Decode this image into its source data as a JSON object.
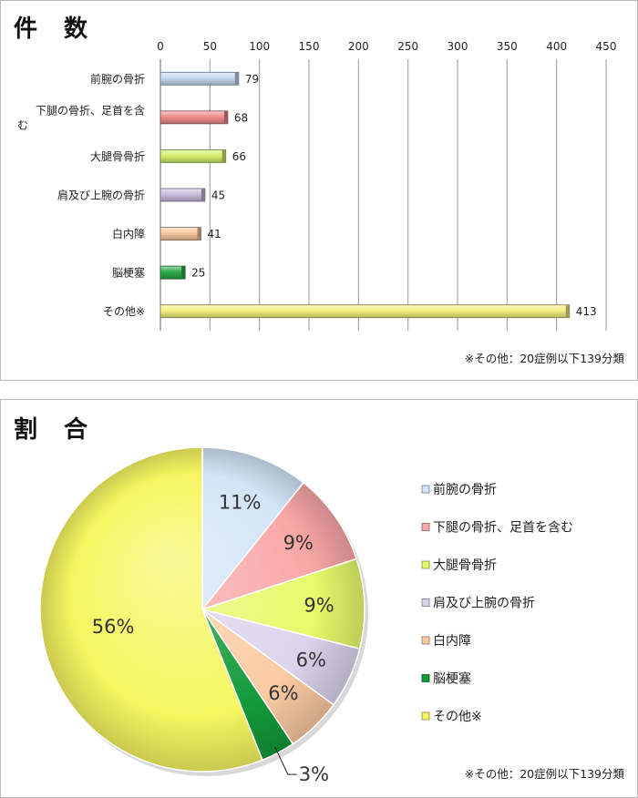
{
  "bar_panel": {
    "title": "件 数",
    "note": "※その他：20症例以下139分類"
  },
  "pie_panel": {
    "title": "割 合",
    "note": "※その他：20症例以下139分類"
  },
  "chart_data": [
    {
      "type": "bar",
      "orientation": "horizontal",
      "title": "件 数",
      "categories": [
        "前腕の骨折",
        "下腿の骨折、足首を含む",
        "大腿骨骨折",
        "肩及び上腕の骨折",
        "白内障",
        "脳梗塞",
        "その他※"
      ],
      "category_lines": [
        [
          "前腕の骨折"
        ],
        [
          "下腿の骨折、足首を含",
          "む"
        ],
        [
          "大腿骨骨折"
        ],
        [
          "肩及び上腕の骨折"
        ],
        [
          "白内障"
        ],
        [
          "脳梗塞"
        ],
        [
          "その他※"
        ]
      ],
      "values": [
        79,
        68,
        66,
        45,
        41,
        25,
        413
      ],
      "colors": [
        "#c6d9f1",
        "#f08c8c",
        "#d4f06a",
        "#c8bedc",
        "#f8c8a0",
        "#2eaa4a",
        "#f4f080"
      ],
      "xlim": [
        0,
        450
      ],
      "xticks": [
        0,
        50,
        100,
        150,
        200,
        250,
        300,
        350,
        400,
        450
      ],
      "axis_position": "top",
      "grid": true,
      "data_labels": true
    },
    {
      "type": "pie",
      "title": "割 合",
      "labels": [
        "前腕の骨折",
        "下腿の骨折、足首を含む",
        "大腿骨骨折",
        "肩及び上腕の骨折",
        "白内障",
        "脳梗塞",
        "その他※"
      ],
      "values": [
        79,
        68,
        66,
        45,
        41,
        25,
        413
      ],
      "percent_labels": [
        "11%",
        "9%",
        "9%",
        "6%",
        "6%",
        "3%",
        "56%"
      ],
      "colors": [
        "#d2e4f8",
        "#f9a6a6",
        "#e6fa6a",
        "#dcd4ec",
        "#fbcba2",
        "#139a3a",
        "#f6f560"
      ],
      "legend": "right",
      "start_angle": "top",
      "direction": "clockwise"
    }
  ]
}
